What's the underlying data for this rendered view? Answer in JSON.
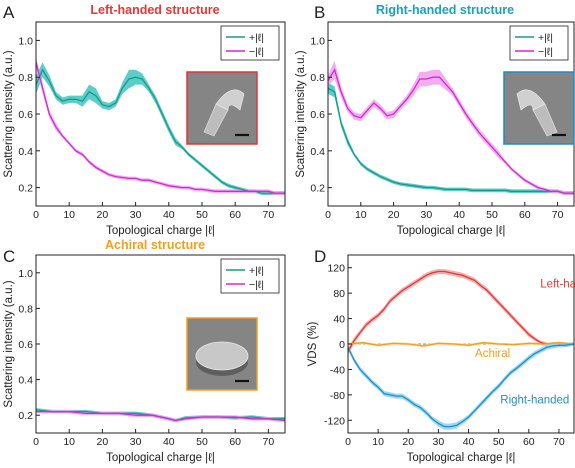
{
  "colors": {
    "plus": "#1a9a8a",
    "plus_band": "#3fc6c0",
    "minus": "#d42ad4",
    "minus_band": "#f0a0ee",
    "left": "#e03a3a",
    "left_band": "#f4a0a0",
    "right": "#1f8fc8",
    "right_band": "#8cd0ee",
    "achiral": "#f0a020",
    "achiral_band": "#ffd290",
    "title_left": "#e03a3a",
    "title_right": "#1ea0b8",
    "title_achiral": "#f0a020"
  },
  "chart_data": [
    {
      "panel": "A",
      "type": "line",
      "title": "Left-handed structure",
      "xlabel": "Topological charge |ℓ|",
      "ylabel": "Scattering intensity (a.u.)",
      "xlim": [
        0,
        75
      ],
      "ylim": [
        0.1,
        1.1
      ],
      "xticks": [
        0,
        10,
        20,
        30,
        40,
        50,
        60,
        70
      ],
      "yticks": [
        0.2,
        0.4,
        0.6,
        0.8,
        1.0
      ],
      "legend": "top-right",
      "inset": "SEM image of left-handed structure",
      "series": [
        {
          "name": "+|ℓ|",
          "color_key": "plus",
          "x": [
            0,
            2,
            4,
            6,
            8,
            10,
            12,
            14,
            16,
            18,
            20,
            22,
            24,
            26,
            28,
            30,
            32,
            34,
            36,
            38,
            40,
            42,
            44,
            46,
            48,
            50,
            52,
            54,
            56,
            58,
            60,
            62,
            64,
            66,
            68,
            70,
            72,
            74,
            75
          ],
          "y": [
            0.76,
            0.84,
            0.78,
            0.7,
            0.67,
            0.68,
            0.68,
            0.67,
            0.72,
            0.7,
            0.65,
            0.64,
            0.66,
            0.74,
            0.79,
            0.8,
            0.79,
            0.74,
            0.68,
            0.6,
            0.52,
            0.45,
            0.42,
            0.38,
            0.35,
            0.32,
            0.29,
            0.26,
            0.23,
            0.21,
            0.2,
            0.19,
            0.18,
            0.18,
            0.17,
            0.17,
            0.17,
            0.17,
            0.17
          ],
          "band": [
            0.05,
            0.04,
            0.03,
            0.02,
            0.02,
            0.02,
            0.02,
            0.03,
            0.04,
            0.04,
            0.02,
            0.02,
            0.02,
            0.03,
            0.05,
            0.04,
            0.03,
            0.02,
            0.02,
            0.02,
            0.02,
            0.02,
            0.01,
            0.01,
            0.01,
            0.01,
            0.01,
            0.01,
            0.01,
            0.01,
            0.01,
            0.01,
            0.01,
            0.01,
            0.01,
            0.01,
            0.01,
            0.01,
            0.01
          ]
        },
        {
          "name": "−|ℓ|",
          "color_key": "minus",
          "x": [
            0,
            2,
            4,
            6,
            8,
            10,
            12,
            14,
            16,
            18,
            20,
            22,
            24,
            26,
            28,
            30,
            32,
            34,
            36,
            38,
            40,
            42,
            44,
            46,
            48,
            50,
            52,
            54,
            56,
            58,
            60,
            62,
            64,
            66,
            68,
            70,
            72,
            74,
            75
          ],
          "y": [
            0.88,
            0.74,
            0.6,
            0.53,
            0.48,
            0.44,
            0.4,
            0.38,
            0.34,
            0.31,
            0.29,
            0.27,
            0.26,
            0.255,
            0.25,
            0.25,
            0.24,
            0.24,
            0.23,
            0.22,
            0.21,
            0.205,
            0.2,
            0.2,
            0.19,
            0.19,
            0.185,
            0.18,
            0.18,
            0.18,
            0.18,
            0.18,
            0.18,
            0.18,
            0.18,
            0.18,
            0.17,
            0.17,
            0.17
          ],
          "band": [
            0.03,
            0.03,
            0.02,
            0.02,
            0.01,
            0.01,
            0.01,
            0.01,
            0.01,
            0.01,
            0.01,
            0.01,
            0.01,
            0.01,
            0.01,
            0.01,
            0.01,
            0.01,
            0.01,
            0.01,
            0.01,
            0.01,
            0.01,
            0.01,
            0.01,
            0.01,
            0.01,
            0.01,
            0.01,
            0.01,
            0.01,
            0.01,
            0.01,
            0.01,
            0.01,
            0.01,
            0.01,
            0.01,
            0.01
          ]
        }
      ]
    },
    {
      "panel": "B",
      "type": "line",
      "title": "Right-handed structure",
      "xlabel": "Topological charge |ℓ|",
      "ylabel": "Scattering intensity (a.u.)",
      "xlim": [
        0,
        75
      ],
      "ylim": [
        0.1,
        1.1
      ],
      "xticks": [
        0,
        10,
        20,
        30,
        40,
        50,
        60,
        70
      ],
      "yticks": [
        0.2,
        0.4,
        0.6,
        0.8,
        1.0
      ],
      "legend": "top-right",
      "inset": "SEM image of right-handed structure",
      "series": [
        {
          "name": "+|ℓ|",
          "color_key": "plus",
          "x": [
            0,
            2,
            4,
            6,
            8,
            10,
            12,
            14,
            16,
            18,
            20,
            22,
            24,
            26,
            28,
            30,
            32,
            34,
            36,
            38,
            40,
            42,
            44,
            46,
            48,
            50,
            52,
            54,
            56,
            58,
            60,
            62,
            64,
            66,
            68,
            70,
            72,
            74,
            75
          ],
          "y": [
            0.74,
            0.72,
            0.55,
            0.45,
            0.38,
            0.33,
            0.3,
            0.28,
            0.26,
            0.245,
            0.23,
            0.22,
            0.215,
            0.21,
            0.205,
            0.2,
            0.2,
            0.195,
            0.19,
            0.19,
            0.19,
            0.19,
            0.185,
            0.185,
            0.185,
            0.185,
            0.185,
            0.185,
            0.18,
            0.18,
            0.18,
            0.18,
            0.18,
            0.18,
            0.18,
            0.18,
            0.17,
            0.17,
            0.17
          ],
          "band": [
            0.03,
            0.03,
            0.02,
            0.02,
            0.01,
            0.01,
            0.01,
            0.01,
            0.01,
            0.01,
            0.01,
            0.01,
            0.01,
            0.01,
            0.01,
            0.01,
            0.01,
            0.01,
            0.01,
            0.01,
            0.01,
            0.01,
            0.01,
            0.01,
            0.01,
            0.01,
            0.01,
            0.01,
            0.01,
            0.01,
            0.01,
            0.01,
            0.01,
            0.01,
            0.01,
            0.01,
            0.01,
            0.01,
            0.01
          ]
        },
        {
          "name": "−|ℓ|",
          "color_key": "minus",
          "x": [
            0,
            2,
            4,
            6,
            8,
            10,
            12,
            14,
            16,
            18,
            20,
            22,
            24,
            26,
            28,
            30,
            32,
            34,
            36,
            38,
            40,
            42,
            44,
            46,
            48,
            50,
            52,
            54,
            56,
            58,
            60,
            62,
            64,
            66,
            68,
            70,
            72,
            74,
            75
          ],
          "y": [
            0.78,
            0.84,
            0.72,
            0.63,
            0.59,
            0.58,
            0.62,
            0.66,
            0.63,
            0.59,
            0.6,
            0.64,
            0.68,
            0.73,
            0.79,
            0.79,
            0.8,
            0.8,
            0.76,
            0.72,
            0.66,
            0.6,
            0.55,
            0.5,
            0.46,
            0.42,
            0.38,
            0.34,
            0.3,
            0.27,
            0.24,
            0.22,
            0.2,
            0.19,
            0.18,
            0.18,
            0.17,
            0.17,
            0.17
          ],
          "band": [
            0.03,
            0.05,
            0.03,
            0.02,
            0.02,
            0.02,
            0.02,
            0.02,
            0.02,
            0.02,
            0.02,
            0.02,
            0.02,
            0.03,
            0.04,
            0.04,
            0.04,
            0.04,
            0.03,
            0.02,
            0.02,
            0.02,
            0.02,
            0.02,
            0.02,
            0.02,
            0.02,
            0.01,
            0.01,
            0.01,
            0.01,
            0.01,
            0.01,
            0.01,
            0.01,
            0.01,
            0.01,
            0.01,
            0.01
          ]
        }
      ]
    },
    {
      "panel": "C",
      "type": "line",
      "title": "Achiral structure",
      "xlabel": "Topological charge |ℓ|",
      "ylabel": "Scattering intensity (a.u.)",
      "xlim": [
        0,
        75
      ],
      "ylim": [
        0.1,
        1.1
      ],
      "xticks": [
        0,
        10,
        20,
        30,
        40,
        50,
        60,
        70
      ],
      "yticks": [
        0.2,
        0.4,
        0.6,
        0.8,
        1.0
      ],
      "legend": "top-right",
      "inset": "SEM image of achiral structure",
      "series": [
        {
          "name": "+|ℓ|",
          "color_key": "plus",
          "x": [
            0,
            5,
            10,
            15,
            20,
            25,
            30,
            35,
            40,
            42,
            45,
            50,
            55,
            60,
            65,
            70,
            75
          ],
          "y": [
            0.23,
            0.22,
            0.22,
            0.22,
            0.21,
            0.21,
            0.21,
            0.2,
            0.18,
            0.17,
            0.185,
            0.19,
            0.19,
            0.185,
            0.19,
            0.18,
            0.18
          ],
          "band": [
            0.01,
            0.01,
            0.01,
            0.01,
            0.01,
            0.01,
            0.01,
            0.01,
            0.01,
            0.01,
            0.01,
            0.01,
            0.01,
            0.01,
            0.01,
            0.01,
            0.01
          ]
        },
        {
          "name": "−|ℓ|",
          "color_key": "minus",
          "x": [
            0,
            5,
            10,
            15,
            20,
            25,
            30,
            35,
            40,
            42,
            45,
            50,
            55,
            60,
            65,
            70,
            75
          ],
          "y": [
            0.22,
            0.22,
            0.22,
            0.21,
            0.21,
            0.21,
            0.2,
            0.2,
            0.18,
            0.17,
            0.18,
            0.19,
            0.19,
            0.19,
            0.18,
            0.18,
            0.17
          ],
          "band": [
            0.01,
            0.01,
            0.01,
            0.01,
            0.01,
            0.01,
            0.01,
            0.01,
            0.01,
            0.01,
            0.01,
            0.01,
            0.01,
            0.01,
            0.01,
            0.01,
            0.01
          ]
        }
      ]
    },
    {
      "panel": "D",
      "type": "line",
      "title": "",
      "xlabel": "Topological charge |ℓ|",
      "ylabel": "VDS (%)",
      "xlim": [
        0,
        75
      ],
      "ylim": [
        -140,
        140
      ],
      "xticks": [
        0,
        10,
        20,
        30,
        40,
        50,
        60,
        70
      ],
      "yticks": [
        -120,
        -80,
        -40,
        0,
        40,
        80,
        120
      ],
      "legend": "none",
      "series": [
        {
          "name": "Left-handed",
          "color_key": "left",
          "x": [
            0,
            2,
            4,
            6,
            8,
            10,
            12,
            14,
            16,
            18,
            20,
            22,
            24,
            26,
            28,
            30,
            32,
            34,
            36,
            38,
            40,
            42,
            44,
            46,
            48,
            50,
            52,
            54,
            56,
            58,
            60,
            62,
            64,
            66
          ],
          "y": [
            -12,
            5,
            18,
            30,
            38,
            45,
            55,
            68,
            76,
            84,
            90,
            96,
            102,
            108,
            112,
            114,
            114,
            112,
            110,
            108,
            104,
            100,
            92,
            85,
            75,
            65,
            55,
            45,
            35,
            25,
            15,
            8,
            2,
            0
          ],
          "band": [
            6,
            5,
            4,
            4,
            4,
            4,
            4,
            4,
            4,
            4,
            4,
            4,
            4,
            4,
            4,
            4,
            4,
            4,
            4,
            4,
            4,
            4,
            4,
            4,
            4,
            4,
            4,
            4,
            4,
            4,
            4,
            3,
            3,
            3
          ]
        },
        {
          "name": "Achiral",
          "color_key": "achiral",
          "x": [
            0,
            5,
            10,
            15,
            20,
            25,
            30,
            35,
            40,
            45,
            50,
            55,
            60,
            65,
            70,
            75
          ],
          "y": [
            0,
            2,
            -2,
            1,
            0,
            -3,
            1,
            0,
            -2,
            2,
            0,
            -1,
            1,
            0,
            2,
            0
          ],
          "band": [
            2,
            2,
            2,
            2,
            2,
            2,
            2,
            2,
            2,
            2,
            2,
            2,
            2,
            2,
            2,
            2
          ]
        },
        {
          "name": "Right-handed",
          "color_key": "right",
          "x": [
            0,
            2,
            4,
            6,
            8,
            10,
            12,
            14,
            16,
            18,
            20,
            22,
            24,
            26,
            28,
            30,
            32,
            34,
            36,
            38,
            40,
            42,
            44,
            46,
            48,
            50,
            52,
            54,
            56,
            58,
            60,
            62,
            64,
            66,
            68,
            70,
            72,
            75
          ],
          "y": [
            -5,
            -25,
            -40,
            -50,
            -60,
            -68,
            -78,
            -80,
            -82,
            -82,
            -88,
            -95,
            -100,
            -108,
            -118,
            -125,
            -130,
            -130,
            -128,
            -122,
            -115,
            -105,
            -95,
            -85,
            -75,
            -66,
            -55,
            -45,
            -38,
            -30,
            -22,
            -15,
            -10,
            -5,
            -3,
            -2,
            -2,
            0
          ],
          "band": [
            4,
            4,
            4,
            4,
            4,
            4,
            4,
            4,
            4,
            4,
            4,
            4,
            4,
            4,
            4,
            5,
            5,
            5,
            5,
            4,
            4,
            4,
            4,
            4,
            4,
            4,
            4,
            4,
            4,
            4,
            4,
            4,
            4,
            4,
            4,
            3,
            3,
            3
          ]
        }
      ]
    }
  ]
}
